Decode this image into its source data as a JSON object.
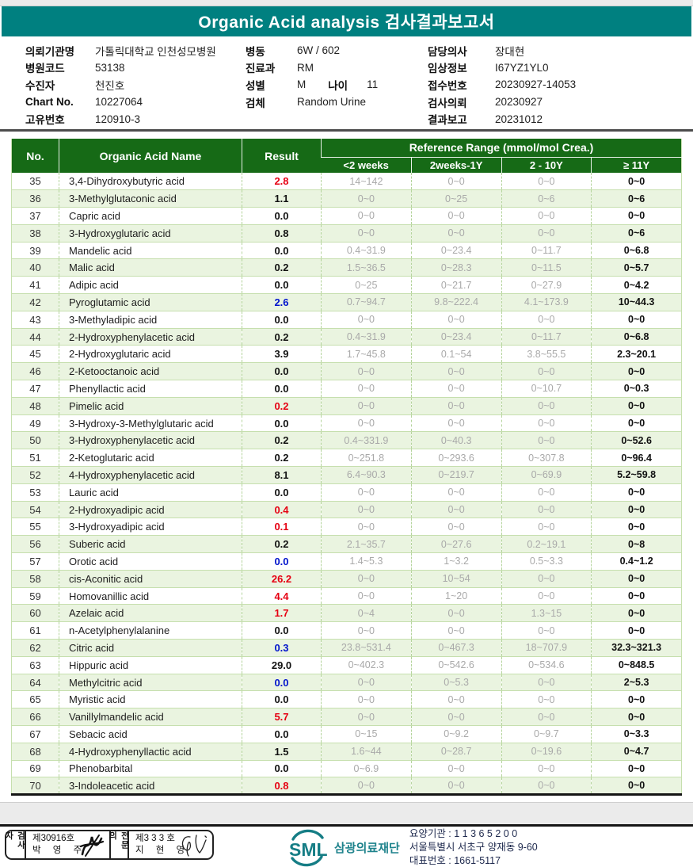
{
  "title": "Organic Acid analysis 검사결과보고서",
  "info": {
    "col1": [
      {
        "label": "의뢰기관명",
        "value": "가톨릭대학교 인천성모병원"
      },
      {
        "label": "병원코드",
        "value": "53138"
      },
      {
        "label": "수진자",
        "value": "천진호"
      },
      {
        "label": "Chart No.",
        "value": "10227064"
      },
      {
        "label": "고유번호",
        "value": "120910-3"
      }
    ],
    "col2": [
      {
        "label": "병동",
        "value": "6W / 602"
      },
      {
        "label": "진료과",
        "value": "RM"
      },
      {
        "label": "성별",
        "value": "M",
        "label2": "나이",
        "value2": "11"
      },
      {
        "label": "검체",
        "value": "Random Urine"
      }
    ],
    "col3": [
      {
        "label": "담당의사",
        "value": "장대현"
      },
      {
        "label": "임상정보",
        "value": "I67YZ1YL0"
      },
      {
        "label": "접수번호",
        "value": "20230927-14053"
      },
      {
        "label": "검사의뢰",
        "value": "20230927"
      },
      {
        "label": "결과보고",
        "value": "20231012"
      }
    ]
  },
  "table": {
    "headers": {
      "no": "No.",
      "name": "Organic Acid Name",
      "result": "Result",
      "ref_group": "Reference Range (mmol/mol Crea.)",
      "sub": [
        "<2 weeks",
        "2weeks-1Y",
        "2 - 10Y",
        "≥ 11Y"
      ]
    },
    "rows": [
      {
        "no": "35",
        "name": "3,4-Dihydroxybutyric acid",
        "result": "2.8",
        "c": "r",
        "r": [
          "14~142",
          "0~0",
          "0~0",
          "0~0"
        ]
      },
      {
        "no": "36",
        "name": "3-Methylglutaconic acid",
        "result": "1.1",
        "c": "k",
        "r": [
          "0~0",
          "0~25",
          "0~6",
          "0~6"
        ]
      },
      {
        "no": "37",
        "name": "Capric acid",
        "result": "0.0",
        "c": "k",
        "r": [
          "0~0",
          "0~0",
          "0~0",
          "0~0"
        ]
      },
      {
        "no": "38",
        "name": "3-Hydroxyglutaric acid",
        "result": "0.8",
        "c": "k",
        "r": [
          "0~0",
          "0~0",
          "0~0",
          "0~6"
        ]
      },
      {
        "no": "39",
        "name": "Mandelic acid",
        "result": "0.0",
        "c": "k",
        "r": [
          "0.4~31.9",
          "0~23.4",
          "0~11.7",
          "0~6.8"
        ]
      },
      {
        "no": "40",
        "name": "Malic acid",
        "result": "0.2",
        "c": "k",
        "r": [
          "1.5~36.5",
          "0~28.3",
          "0~11.5",
          "0~5.7"
        ]
      },
      {
        "no": "41",
        "name": "Adipic acid",
        "result": "0.0",
        "c": "k",
        "r": [
          "0~25",
          "0~21.7",
          "0~27.9",
          "0~4.2"
        ]
      },
      {
        "no": "42",
        "name": "Pyroglutamic acid",
        "result": "2.6",
        "c": "b",
        "r": [
          "0.7~94.7",
          "9.8~222.4",
          "4.1~173.9",
          "10~44.3"
        ]
      },
      {
        "no": "43",
        "name": "3-Methyladipic acid",
        "result": "0.0",
        "c": "k",
        "r": [
          "0~0",
          "0~0",
          "0~0",
          "0~0"
        ]
      },
      {
        "no": "44",
        "name": "2-Hydroxyphenylacetic acid",
        "result": "0.2",
        "c": "k",
        "r": [
          "0.4~31.9",
          "0~23.4",
          "0~11.7",
          "0~6.8"
        ]
      },
      {
        "no": "45",
        "name": "2-Hydroxyglutaric acid",
        "result": "3.9",
        "c": "k",
        "r": [
          "1.7~45.8",
          "0.1~54",
          "3.8~55.5",
          "2.3~20.1"
        ]
      },
      {
        "no": "46",
        "name": "2-Ketooctanoic acid",
        "result": "0.0",
        "c": "k",
        "r": [
          "0~0",
          "0~0",
          "0~0",
          "0~0"
        ]
      },
      {
        "no": "47",
        "name": "Phenyllactic acid",
        "result": "0.0",
        "c": "k",
        "r": [
          "0~0",
          "0~0",
          "0~10.7",
          "0~0.3"
        ]
      },
      {
        "no": "48",
        "name": "Pimelic acid",
        "result": "0.2",
        "c": "r",
        "r": [
          "0~0",
          "0~0",
          "0~0",
          "0~0"
        ]
      },
      {
        "no": "49",
        "name": "3-Hydroxy-3-Methylglutaric acid",
        "result": "0.0",
        "c": "k",
        "r": [
          "0~0",
          "0~0",
          "0~0",
          "0~0"
        ]
      },
      {
        "no": "50",
        "name": "3-Hydroxyphenylacetic acid",
        "result": "0.2",
        "c": "k",
        "r": [
          "0.4~331.9",
          "0~40.3",
          "0~0",
          "0~52.6"
        ]
      },
      {
        "no": "51",
        "name": "2-Ketoglutaric acid",
        "result": "0.2",
        "c": "k",
        "r": [
          "0~251.8",
          "0~293.6",
          "0~307.8",
          "0~96.4"
        ]
      },
      {
        "no": "52",
        "name": "4-Hydroxyphenylacetic acid",
        "result": "8.1",
        "c": "k",
        "r": [
          "6.4~90.3",
          "0~219.7",
          "0~69.9",
          "5.2~59.8"
        ]
      },
      {
        "no": "53",
        "name": "Lauric acid",
        "result": "0.0",
        "c": "k",
        "r": [
          "0~0",
          "0~0",
          "0~0",
          "0~0"
        ]
      },
      {
        "no": "54",
        "name": "2-Hydroxyadipic acid",
        "result": "0.4",
        "c": "r",
        "r": [
          "0~0",
          "0~0",
          "0~0",
          "0~0"
        ]
      },
      {
        "no": "55",
        "name": "3-Hydroxyadipic acid",
        "result": "0.1",
        "c": "r",
        "r": [
          "0~0",
          "0~0",
          "0~0",
          "0~0"
        ]
      },
      {
        "no": "56",
        "name": "Suberic acid",
        "result": "0.2",
        "c": "k",
        "r": [
          "2.1~35.7",
          "0~27.6",
          "0.2~19.1",
          "0~8"
        ]
      },
      {
        "no": "57",
        "name": "Orotic acid",
        "result": "0.0",
        "c": "b",
        "r": [
          "1.4~5.3",
          "1~3.2",
          "0.5~3.3",
          "0.4~1.2"
        ]
      },
      {
        "no": "58",
        "name": "cis-Aconitic acid",
        "result": "26.2",
        "c": "r",
        "r": [
          "0~0",
          "10~54",
          "0~0",
          "0~0"
        ]
      },
      {
        "no": "59",
        "name": "Homovanillic acid",
        "result": "4.4",
        "c": "r",
        "r": [
          "0~0",
          "1~20",
          "0~0",
          "0~0"
        ]
      },
      {
        "no": "60",
        "name": "Azelaic acid",
        "result": "1.7",
        "c": "r",
        "r": [
          "0~4",
          "0~0",
          "1.3~15",
          "0~0"
        ]
      },
      {
        "no": "61",
        "name": "n-Acetylphenylalanine",
        "result": "0.0",
        "c": "k",
        "r": [
          "0~0",
          "0~0",
          "0~0",
          "0~0"
        ]
      },
      {
        "no": "62",
        "name": "Citric acid",
        "result": "0.3",
        "c": "b",
        "r": [
          "23.8~531.4",
          "0~467.3",
          "18~707.9",
          "32.3~321.3"
        ]
      },
      {
        "no": "63",
        "name": "Hippuric acid",
        "result": "29.0",
        "c": "k",
        "r": [
          "0~402.3",
          "0~542.6",
          "0~534.6",
          "0~848.5"
        ]
      },
      {
        "no": "64",
        "name": "Methylcitric acid",
        "result": "0.0",
        "c": "b",
        "r": [
          "0~0",
          "0~5.3",
          "0~0",
          "2~5.3"
        ]
      },
      {
        "no": "65",
        "name": "Myristic acid",
        "result": "0.0",
        "c": "k",
        "r": [
          "0~0",
          "0~0",
          "0~0",
          "0~0"
        ]
      },
      {
        "no": "66",
        "name": "Vanillylmandelic acid",
        "result": "5.7",
        "c": "r",
        "r": [
          "0~0",
          "0~0",
          "0~0",
          "0~0"
        ]
      },
      {
        "no": "67",
        "name": "Sebacic acid",
        "result": "0.0",
        "c": "k",
        "r": [
          "0~15",
          "0~9.2",
          "0~9.7",
          "0~3.3"
        ]
      },
      {
        "no": "68",
        "name": "4-Hydroxyphenyllactic acid",
        "result": "1.5",
        "c": "k",
        "r": [
          "1.6~44",
          "0~28.7",
          "0~19.6",
          "0~4.7"
        ]
      },
      {
        "no": "69",
        "name": "Phenobarbital",
        "result": "0.0",
        "c": "k",
        "r": [
          "0~6.9",
          "0~0",
          "0~0",
          "0~0"
        ]
      },
      {
        "no": "70",
        "name": "3-Indoleacetic acid",
        "result": "0.8",
        "c": "r",
        "r": [
          "0~0",
          "0~0",
          "0~0",
          "0~0"
        ]
      }
    ]
  },
  "footer": {
    "examiner_label": "검사자",
    "examiner_cert": "제30916호",
    "examiner_name": "박 영 주",
    "specialist_label": "전문의",
    "specialist_cert": "제3 3 3 호",
    "specialist_name": "지 현 영",
    "logo_text": "SML",
    "org_name": "삼광의료재단",
    "addr_line1": "요양기관 : 1 1 3 6 5 2 0 0",
    "addr_line2": "서울특별시 서초구 양재동 9-60",
    "addr_line3": "대표번호 : 1661-5117"
  },
  "colors": {
    "banner_teal": "#008080",
    "header_green": "#166a16",
    "row_alt_green": "#eaf4e0",
    "result_high_red": "#e60012",
    "result_low_blue": "#0013cc",
    "logo_teal": "#157d85"
  }
}
